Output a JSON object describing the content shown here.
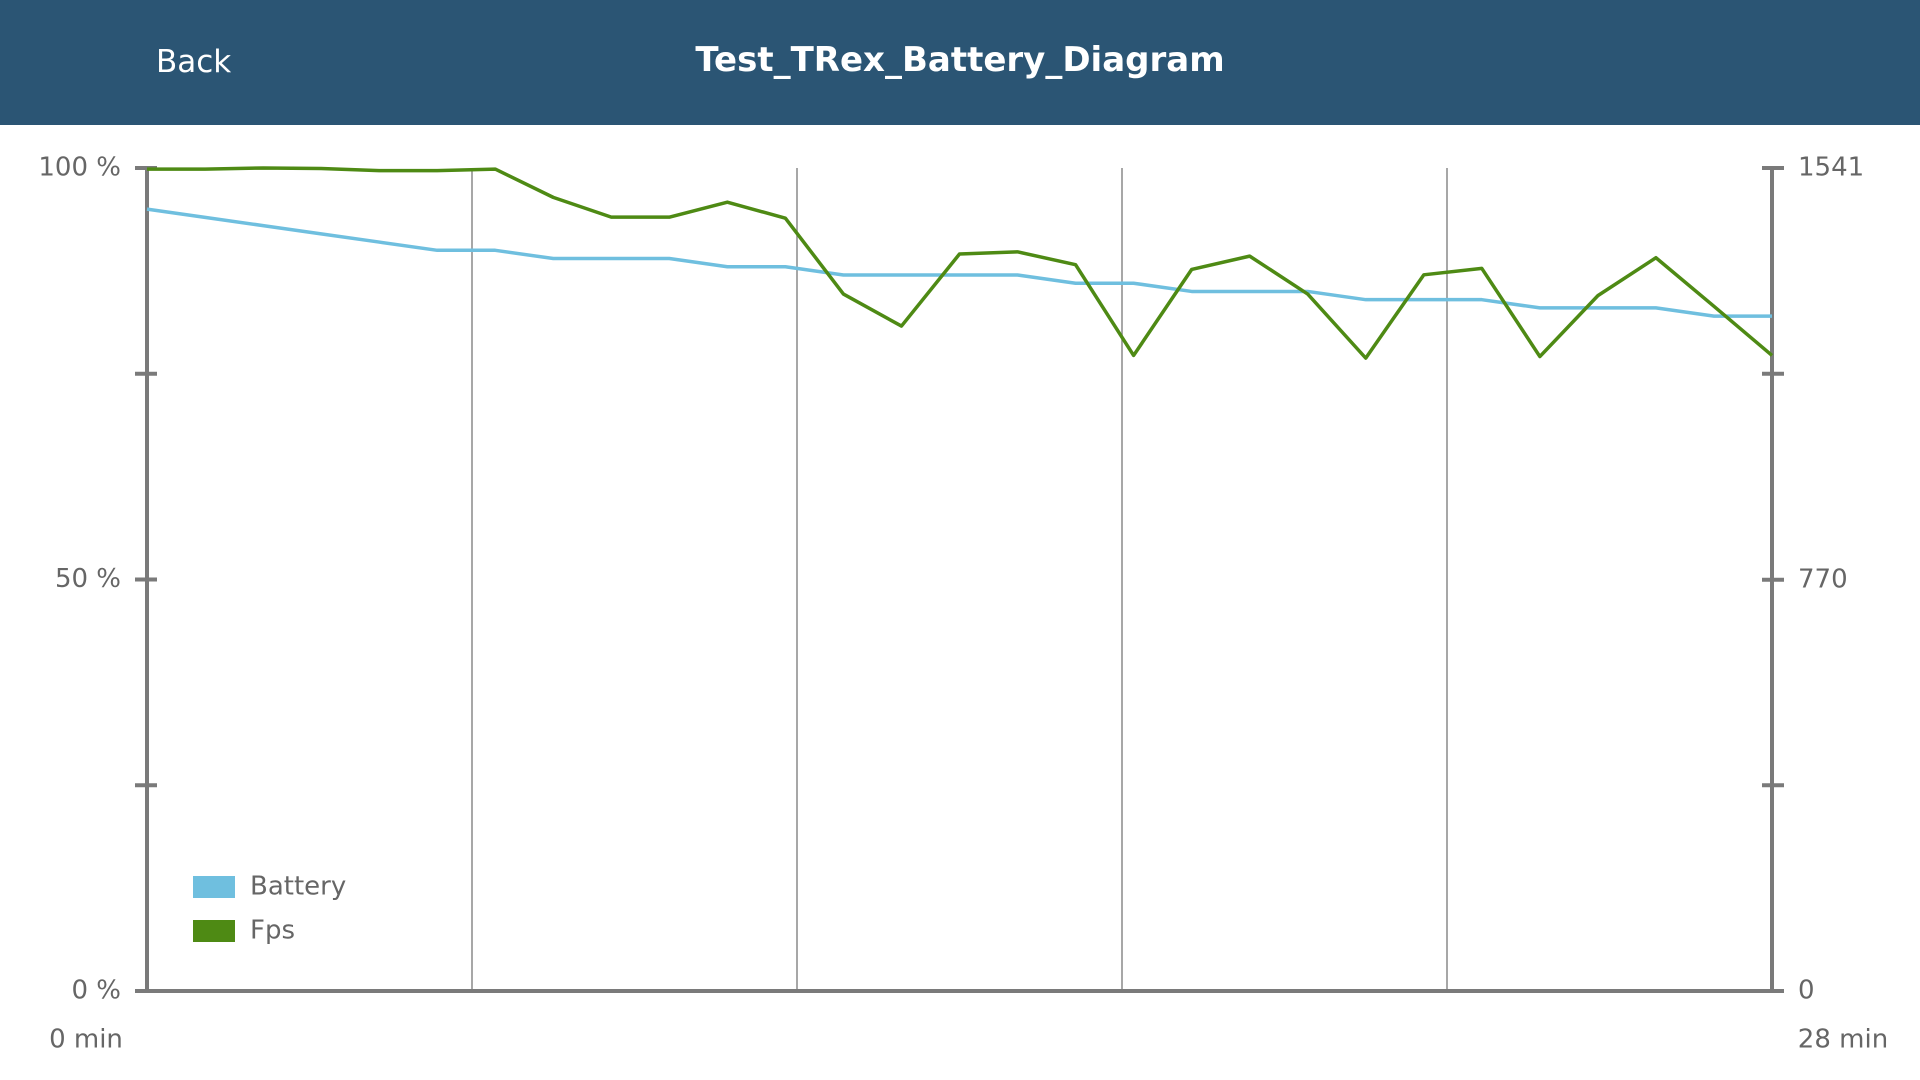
{
  "header": {
    "back": "Back"
  },
  "chart_data": {
    "type": "line",
    "title": "Test_TRex_Battery_Diagram",
    "x": [
      0,
      1,
      2,
      3,
      4,
      5,
      6,
      7,
      8,
      9,
      10,
      11,
      12,
      13,
      14,
      15,
      16,
      17,
      18,
      19,
      20,
      21,
      22,
      23,
      24,
      25,
      26,
      27,
      28
    ],
    "xlim": [
      0,
      28
    ],
    "xticks": [
      {
        "value": 0,
        "label": "0 min"
      },
      {
        "value": 5.6,
        "label": null
      },
      {
        "value": 11.2,
        "label": null
      },
      {
        "value": 16.8,
        "label": null
      },
      {
        "value": 22.4,
        "label": null
      },
      {
        "value": 28,
        "label": "28 min"
      }
    ],
    "ylim": [
      0,
      100
    ],
    "yticks": [
      {
        "value": 0,
        "label": "0 %"
      },
      {
        "value": 25,
        "label": null
      },
      {
        "value": 50,
        "label": "50 %"
      },
      {
        "value": 75,
        "label": null
      },
      {
        "value": 100,
        "label": "100 %"
      }
    ],
    "y2lim": [
      0,
      1541
    ],
    "y2ticks": [
      0,
      {
        "value": 385.25,
        "label": null
      },
      770,
      {
        "value": 1155.75,
        "label": null
      },
      1541
    ],
    "grid": true,
    "legend": "lower-left",
    "series": [
      {
        "name": "Battery",
        "color": "#6fbfdf",
        "values": [
          95,
          94,
          93,
          92,
          91,
          90,
          90,
          89,
          89,
          89,
          88,
          88,
          87,
          87,
          87,
          87,
          86,
          86,
          85,
          85,
          85,
          84,
          84,
          84,
          83,
          83,
          83,
          82,
          82
        ]
      },
      {
        "name": "Fps",
        "color": "#4e8a14",
        "axis": "y2",
        "values": [
          1539,
          1539,
          1541,
          1540,
          1536,
          1536,
          1539,
          1486,
          1449,
          1449,
          1477,
          1447,
          1305,
          1245,
          1380,
          1384,
          1360,
          1190,
          1351,
          1376,
          1305,
          1185,
          1341,
          1353,
          1188,
          1302,
          1373,
          1282,
          1190
        ]
      }
    ]
  }
}
